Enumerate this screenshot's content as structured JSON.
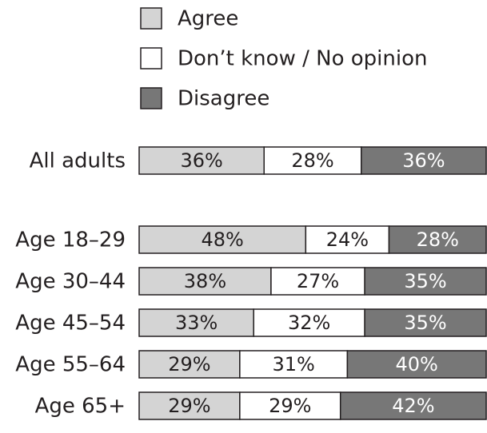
{
  "chart_data": {
    "type": "bar",
    "orientation": "horizontal",
    "stacked": true,
    "percent_stacked": true,
    "legend_position": "top",
    "grid": false,
    "title": "",
    "xlabel": "",
    "ylabel": "",
    "xlim": [
      0,
      100
    ],
    "categories": [
      "All adults",
      "Age 18–29",
      "Age 30–44",
      "Age 45–54",
      "Age 55–64",
      "Age 65+"
    ],
    "series": [
      {
        "name": "Agree",
        "color": "#d4d4d4",
        "text_color": "#231f20",
        "values": [
          36,
          48,
          38,
          33,
          29,
          29
        ]
      },
      {
        "name": "Don’t know / No opinion",
        "color": "#ffffff",
        "text_color": "#231f20",
        "values": [
          28,
          24,
          27,
          32,
          31,
          29
        ]
      },
      {
        "name": "Disagree",
        "color": "#777777",
        "text_color": "#ffffff",
        "values": [
          36,
          28,
          35,
          35,
          40,
          42
        ]
      }
    ],
    "value_labels": [
      [
        "36%",
        "28%",
        "36%"
      ],
      [
        "48%",
        "24%",
        "28%"
      ],
      [
        "38%",
        "27%",
        "35%"
      ],
      [
        "33%",
        "32%",
        "35%"
      ],
      [
        "29%",
        "31%",
        "40%"
      ],
      [
        "29%",
        "29%",
        "42%"
      ]
    ]
  }
}
